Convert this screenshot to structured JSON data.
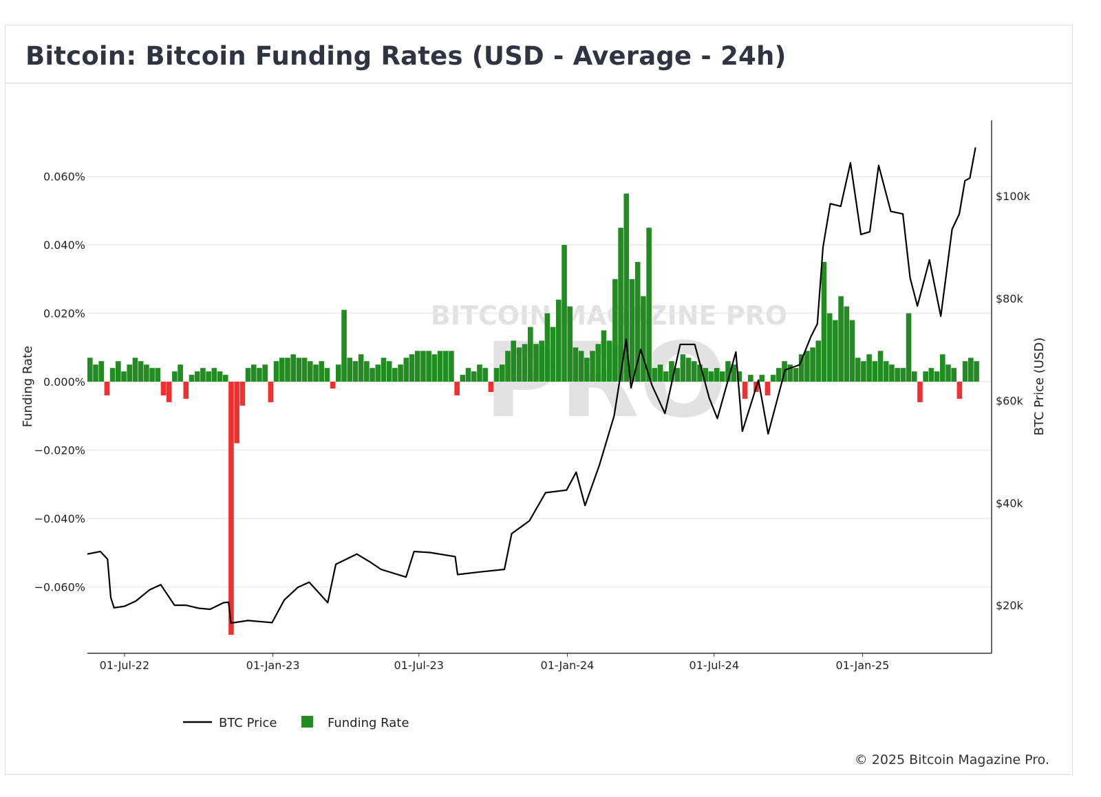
{
  "page": {
    "title": "Bitcoin: Bitcoin Funding Rates (USD - Average - 24h)",
    "footer": "© 2025 Bitcoin Magazine Pro.",
    "watermark": "BITCOIN MAGAZINE PRO"
  },
  "chart_data": {
    "type": "bar+line",
    "title": "Bitcoin: Bitcoin Funding Rates (USD - Average - 24h)",
    "x_tick_labels": [
      "01-Jul-22",
      "01-Jan-23",
      "01-Jul-23",
      "01-Jan-24",
      "01-Jul-24",
      "01-Jan-25"
    ],
    "x_tick_dates": [
      "2022-07-01",
      "2023-01-01",
      "2023-07-01",
      "2024-01-01",
      "2024-07-01",
      "2025-01-01"
    ],
    "x_range": [
      "2022-05-16",
      "2025-06-10"
    ],
    "y_left": {
      "label": "Funding Rate",
      "unit": "%",
      "range": [
        -0.0794,
        0.0764
      ],
      "ticks": [
        0.06,
        0.04,
        0.02,
        0,
        -0.02,
        -0.04,
        -0.06
      ],
      "tick_labels": [
        "0.060%",
        "0.040%",
        "0.020%",
        "0.000%",
        "−0.020%",
        "−0.040%",
        "−0.060%"
      ]
    },
    "y_right": {
      "label": "BTC Price (USD)",
      "unit": "USD thousands",
      "range": [
        10.6,
        114.8
      ],
      "ticks": [
        100,
        80,
        60,
        40,
        20
      ],
      "tick_labels": [
        "$100k",
        "$80k",
        "$60k",
        "$40k",
        "$20k"
      ]
    },
    "grid": true,
    "legend_position": "bottom-left",
    "legend": [
      {
        "name": "BTC Price",
        "color": "#000000",
        "kind": "line"
      },
      {
        "name": "Funding Rate",
        "color": "#228b22",
        "kind": "bar"
      }
    ],
    "colors": {
      "positive": "#228b22",
      "negative": "#f03030",
      "price": "#000000",
      "grid": "#e8e8e8"
    },
    "funding_rate": {
      "name": "Funding Rate",
      "first_date": "2022-05-16",
      "interval_days": 7,
      "values": [
        0.007,
        0.005,
        0.006,
        -0.004,
        0.004,
        0.006,
        0.003,
        0.005,
        0.007,
        0.006,
        0.005,
        0.004,
        0.004,
        -0.004,
        -0.006,
        0.003,
        0.005,
        -0.005,
        0.002,
        0.003,
        0.004,
        0.003,
        0.004,
        0.003,
        0.002,
        -0.074,
        -0.018,
        -0.007,
        0.004,
        0.005,
        0.004,
        0.005,
        -0.006,
        0.006,
        0.007,
        0.007,
        0.008,
        0.007,
        0.007,
        0.006,
        0.005,
        0.006,
        0.004,
        -0.002,
        0.005,
        0.021,
        0.007,
        0.006,
        0.008,
        0.006,
        0.004,
        0.005,
        0.007,
        0.006,
        0.004,
        0.005,
        0.007,
        0.008,
        0.009,
        0.009,
        0.009,
        0.008,
        0.009,
        0.009,
        0.009,
        -0.004,
        0.002,
        0.004,
        0.003,
        0.005,
        0.004,
        -0.003,
        0.004,
        0.005,
        0.009,
        0.012,
        0.01,
        0.011,
        0.016,
        0.011,
        0.012,
        0.02,
        0.016,
        0.024,
        0.04,
        0.022,
        0.01,
        0.009,
        0.007,
        0.009,
        0.011,
        0.015,
        0.012,
        0.03,
        0.045,
        0.055,
        0.03,
        0.035,
        0.025,
        0.045,
        0.004,
        0.005,
        0.003,
        0.006,
        0.004,
        0.008,
        0.007,
        0.006,
        0.005,
        0.004,
        0.003,
        0.004,
        0.003,
        0.006,
        0.005,
        0.003,
        -0.005,
        0.002,
        -0.003,
        0.002,
        -0.004,
        0.002,
        0.004,
        0.006,
        0.005,
        0.004,
        0.008,
        0.009,
        0.01,
        0.012,
        0.035,
        0.02,
        0.018,
        0.025,
        0.022,
        0.018,
        0.007,
        0.006,
        0.008,
        0.006,
        0.009,
        0.006,
        0.005,
        0.004,
        0.004,
        0.02,
        0.003,
        -0.006,
        0.003,
        0.004,
        0.003,
        0.008,
        0.005,
        0.004,
        -0.005,
        0.006,
        0.007,
        0.006
      ]
    },
    "btc_price": {
      "name": "BTC Price",
      "unit": "USD thousands",
      "points": [
        [
          "2022-05-16",
          30.0
        ],
        [
          "2022-06-01",
          30.5
        ],
        [
          "2022-06-10",
          29.0
        ],
        [
          "2022-06-14",
          21.5
        ],
        [
          "2022-06-18",
          19.5
        ],
        [
          "2022-07-01",
          19.8
        ],
        [
          "2022-07-15",
          20.8
        ],
        [
          "2022-08-01",
          23.0
        ],
        [
          "2022-08-15",
          24.0
        ],
        [
          "2022-09-01",
          20.0
        ],
        [
          "2022-09-15",
          20.0
        ],
        [
          "2022-10-01",
          19.4
        ],
        [
          "2022-10-15",
          19.2
        ],
        [
          "2022-11-01",
          20.5
        ],
        [
          "2022-11-07",
          20.6
        ],
        [
          "2022-11-10",
          16.5
        ],
        [
          "2022-12-01",
          17.0
        ],
        [
          "2022-12-31",
          16.6
        ],
        [
          "2023-01-15",
          21.0
        ],
        [
          "2023-02-01",
          23.5
        ],
        [
          "2023-02-15",
          24.5
        ],
        [
          "2023-03-10",
          20.5
        ],
        [
          "2023-03-20",
          28.0
        ],
        [
          "2023-04-15",
          30.0
        ],
        [
          "2023-05-01",
          28.5
        ],
        [
          "2023-05-15",
          27.0
        ],
        [
          "2023-06-15",
          25.5
        ],
        [
          "2023-06-25",
          30.5
        ],
        [
          "2023-07-15",
          30.3
        ],
        [
          "2023-08-15",
          29.5
        ],
        [
          "2023-08-18",
          26.0
        ],
        [
          "2023-09-15",
          26.5
        ],
        [
          "2023-10-15",
          27.0
        ],
        [
          "2023-10-24",
          34.0
        ],
        [
          "2023-11-15",
          36.5
        ],
        [
          "2023-12-05",
          42.0
        ],
        [
          "2023-12-31",
          42.5
        ],
        [
          "2024-01-12",
          46.0
        ],
        [
          "2024-01-23",
          39.5
        ],
        [
          "2024-02-10",
          47.5
        ],
        [
          "2024-02-28",
          57.0
        ],
        [
          "2024-03-14",
          72.0
        ],
        [
          "2024-03-20",
          62.5
        ],
        [
          "2024-04-01",
          70.0
        ],
        [
          "2024-04-15",
          63.0
        ],
        [
          "2024-05-01",
          57.5
        ],
        [
          "2024-05-20",
          71.0
        ],
        [
          "2024-06-07",
          71.0
        ],
        [
          "2024-06-25",
          60.5
        ],
        [
          "2024-07-05",
          56.5
        ],
        [
          "2024-07-28",
          69.5
        ],
        [
          "2024-08-05",
          54.0
        ],
        [
          "2024-08-25",
          64.0
        ],
        [
          "2024-09-06",
          53.5
        ],
        [
          "2024-09-27",
          66.0
        ],
        [
          "2024-10-15",
          67.0
        ],
        [
          "2024-10-29",
          72.5
        ],
        [
          "2024-11-06",
          75.0
        ],
        [
          "2024-11-13",
          90.0
        ],
        [
          "2024-11-22",
          98.5
        ],
        [
          "2024-12-05",
          98.0
        ],
        [
          "2024-12-17",
          106.5
        ],
        [
          "2024-12-30",
          92.5
        ],
        [
          "2025-01-10",
          93.0
        ],
        [
          "2025-01-21",
          106.0
        ],
        [
          "2025-02-05",
          97.0
        ],
        [
          "2025-02-20",
          96.5
        ],
        [
          "2025-03-01",
          84.0
        ],
        [
          "2025-03-10",
          78.5
        ],
        [
          "2025-03-25",
          87.5
        ],
        [
          "2025-04-08",
          76.5
        ],
        [
          "2025-04-22",
          93.5
        ],
        [
          "2025-05-01",
          96.5
        ],
        [
          "2025-05-08",
          103.0
        ],
        [
          "2025-05-14",
          103.5
        ],
        [
          "2025-05-21",
          109.5
        ]
      ]
    }
  }
}
